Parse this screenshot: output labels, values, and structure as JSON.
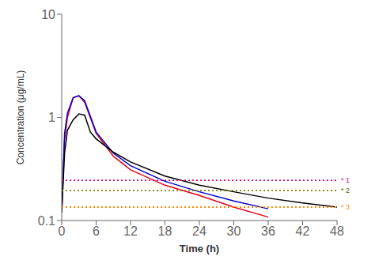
{
  "chart_data": {
    "type": "line",
    "title": "",
    "xlabel": "Time (h)",
    "ylabel": "Concentration (μg/mL)",
    "log": "y",
    "grid": false,
    "xlim": [
      0,
      48
    ],
    "ylim": [
      0.1,
      10
    ],
    "xticks": [
      0,
      6,
      12,
      18,
      24,
      30,
      36,
      42,
      48
    ],
    "yticks": [
      0.1,
      1,
      10
    ],
    "series": [
      {
        "color": "#e8001c",
        "x": [
          0,
          0.5,
          1,
          2,
          3,
          4,
          6,
          9,
          12,
          18,
          24,
          30,
          36
        ],
        "values": [
          0.12,
          0.6,
          1.0,
          1.55,
          1.62,
          1.4,
          0.7,
          0.42,
          0.31,
          0.22,
          0.175,
          0.135,
          0.108
        ]
      },
      {
        "color": "#0000cc",
        "x": [
          0,
          0.5,
          1,
          2,
          3,
          4,
          6,
          9,
          12,
          18,
          24,
          30,
          36
        ],
        "values": [
          0.12,
          0.7,
          1.1,
          1.55,
          1.62,
          1.45,
          0.72,
          0.45,
          0.34,
          0.24,
          0.19,
          0.155,
          0.13
        ]
      },
      {
        "color": "#000000",
        "x": [
          0,
          0.5,
          1,
          2,
          3,
          4,
          5,
          6,
          9,
          12,
          18,
          24,
          30,
          36,
          42,
          48
        ],
        "values": [
          0.12,
          0.45,
          0.75,
          0.95,
          1.08,
          1.05,
          0.72,
          0.62,
          0.46,
          0.37,
          0.27,
          0.22,
          0.19,
          0.165,
          0.148,
          0.135
        ]
      }
    ],
    "hlines": [
      {
        "y": 0.245,
        "label": "* 1",
        "color": "#e0007a",
        "label_color": "#e0007a",
        "line_style": "dotted"
      },
      {
        "y": 0.195,
        "label": "* 2",
        "color": "#808000",
        "label_color": "#606000",
        "line_style": "dotted"
      },
      {
        "y": 0.135,
        "label": "* 3",
        "color": "#ff8800",
        "label_color": "#ff8800",
        "line_style": "dotted"
      }
    ]
  }
}
